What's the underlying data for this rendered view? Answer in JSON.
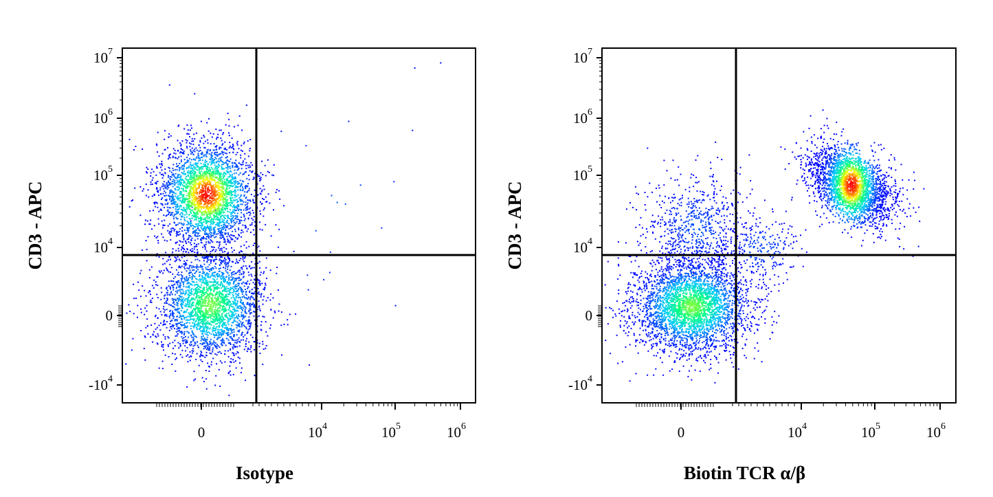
{
  "chart_data": [
    {
      "type": "scatter",
      "subtype": "flow-cytometry-density-dot-plot",
      "title": "",
      "xlabel": "Isotype",
      "ylabel": "CD3 - APC",
      "x_scale": "biexponential",
      "y_scale": "biexponential",
      "x_ticks": [
        {
          "base": "0",
          "exp": ""
        },
        {
          "base": "10",
          "exp": "4"
        },
        {
          "base": "10",
          "exp": "5"
        },
        {
          "base": "10",
          "exp": "6"
        }
      ],
      "y_ticks": [
        {
          "base": "10",
          "exp": "7"
        },
        {
          "base": "10",
          "exp": "6"
        },
        {
          "base": "10",
          "exp": "5"
        },
        {
          "base": "10",
          "exp": "4"
        },
        {
          "base": "0",
          "exp": ""
        },
        {
          "base": "-10",
          "exp": "4"
        }
      ],
      "quadrant_gate": {
        "x": 1000,
        "y": 7000
      },
      "populations": [
        {
          "name": "CD3+ cluster",
          "center": {
            "x": 0,
            "y": 42000
          },
          "events": 2900
        },
        {
          "name": "CD3- cluster",
          "center": {
            "x": 0,
            "y": 0
          },
          "events": 2700
        },
        {
          "name": "sparse outliers",
          "center": {
            "x": 30000,
            "y": 20000
          },
          "events": 30
        }
      ],
      "color_scale": [
        "#0000ff",
        "#00c8ff",
        "#00ff80",
        "#ffff00",
        "#ff0000"
      ],
      "grid": false,
      "legend": "none"
    },
    {
      "type": "scatter",
      "subtype": "flow-cytometry-density-dot-plot",
      "title": "",
      "xlabel": "Biotin TCR α/β",
      "ylabel": "CD3 - APC",
      "x_scale": "biexponential",
      "y_scale": "biexponential",
      "x_ticks": [
        {
          "base": "0",
          "exp": ""
        },
        {
          "base": "10",
          "exp": "4"
        },
        {
          "base": "10",
          "exp": "5"
        },
        {
          "base": "10",
          "exp": "6"
        }
      ],
      "y_ticks": [
        {
          "base": "10",
          "exp": "7"
        },
        {
          "base": "10",
          "exp": "6"
        },
        {
          "base": "10",
          "exp": "5"
        },
        {
          "base": "10",
          "exp": "4"
        },
        {
          "base": "0",
          "exp": ""
        },
        {
          "base": "-10",
          "exp": "4"
        }
      ],
      "quadrant_gate": {
        "x": 1000,
        "y": 7000
      },
      "populations": [
        {
          "name": "TCRαβ+ CD3+ cluster",
          "center": {
            "x": 40000,
            "y": 60000
          },
          "events": 2600
        },
        {
          "name": "double-negative cluster",
          "center": {
            "x": 0,
            "y": 0
          },
          "events": 3300
        },
        {
          "name": "TCR- CD3+ scatter",
          "center": {
            "x": 0,
            "y": 25000
          },
          "events": 700
        },
        {
          "name": "TCR low bridge",
          "center": {
            "x": 3000,
            "y": 8000
          },
          "events": 250
        }
      ],
      "color_scale": [
        "#0000ff",
        "#00c8ff",
        "#00ff80",
        "#ffff00",
        "#ff0000"
      ],
      "grid": false,
      "legend": "none"
    }
  ]
}
